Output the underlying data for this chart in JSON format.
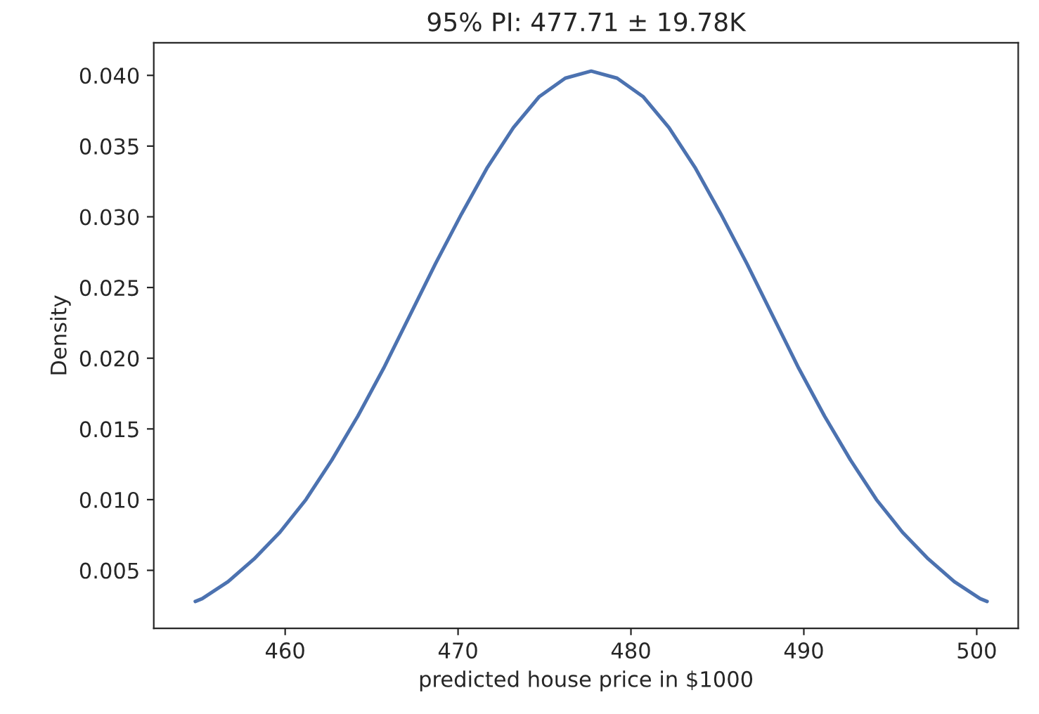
{
  "chart_data": {
    "type": "line",
    "title": "95% PI: 477.71 ± 19.78K",
    "xlabel": "predicted house price in $1000",
    "ylabel": "Density",
    "x": [
      454.8,
      455.2,
      456.7,
      458.2,
      459.7,
      461.2,
      462.7,
      464.2,
      465.7,
      467.2,
      468.7,
      470.2,
      471.7,
      473.2,
      474.7,
      476.2,
      477.7,
      479.2,
      480.7,
      482.2,
      483.7,
      485.2,
      486.7,
      488.2,
      489.7,
      491.2,
      492.7,
      494.2,
      495.7,
      497.2,
      498.7,
      500.2,
      500.6
    ],
    "series": [
      {
        "color": "#4c72b0",
        "values": [
          0.0028,
          0.003,
          0.0042,
          0.0058,
          0.0077,
          0.01,
          0.0128,
          0.0159,
          0.0193,
          0.023,
          0.0267,
          0.0302,
          0.0335,
          0.0363,
          0.0385,
          0.0398,
          0.0403,
          0.0398,
          0.0385,
          0.0363,
          0.0335,
          0.0302,
          0.0267,
          0.023,
          0.0193,
          0.0159,
          0.0128,
          0.01,
          0.0077,
          0.0058,
          0.0042,
          0.003,
          0.0028
        ]
      }
    ],
    "xlim": [
      452.4,
      502.4
    ],
    "xticks": [
      460,
      470,
      480,
      490,
      500
    ],
    "ylim": [
      0.0009,
      0.0423
    ],
    "yticks": [
      0.005,
      {
        "value": 0.01,
        "label": "0.010"
      },
      0.015,
      {
        "value": 0.02,
        "label": "0.020"
      },
      0.025,
      {
        "value": 0.03,
        "label": "0.030"
      },
      0.035,
      {
        "value": 0.04,
        "label": "0.040"
      }
    ],
    "grid": false,
    "legend": false
  }
}
